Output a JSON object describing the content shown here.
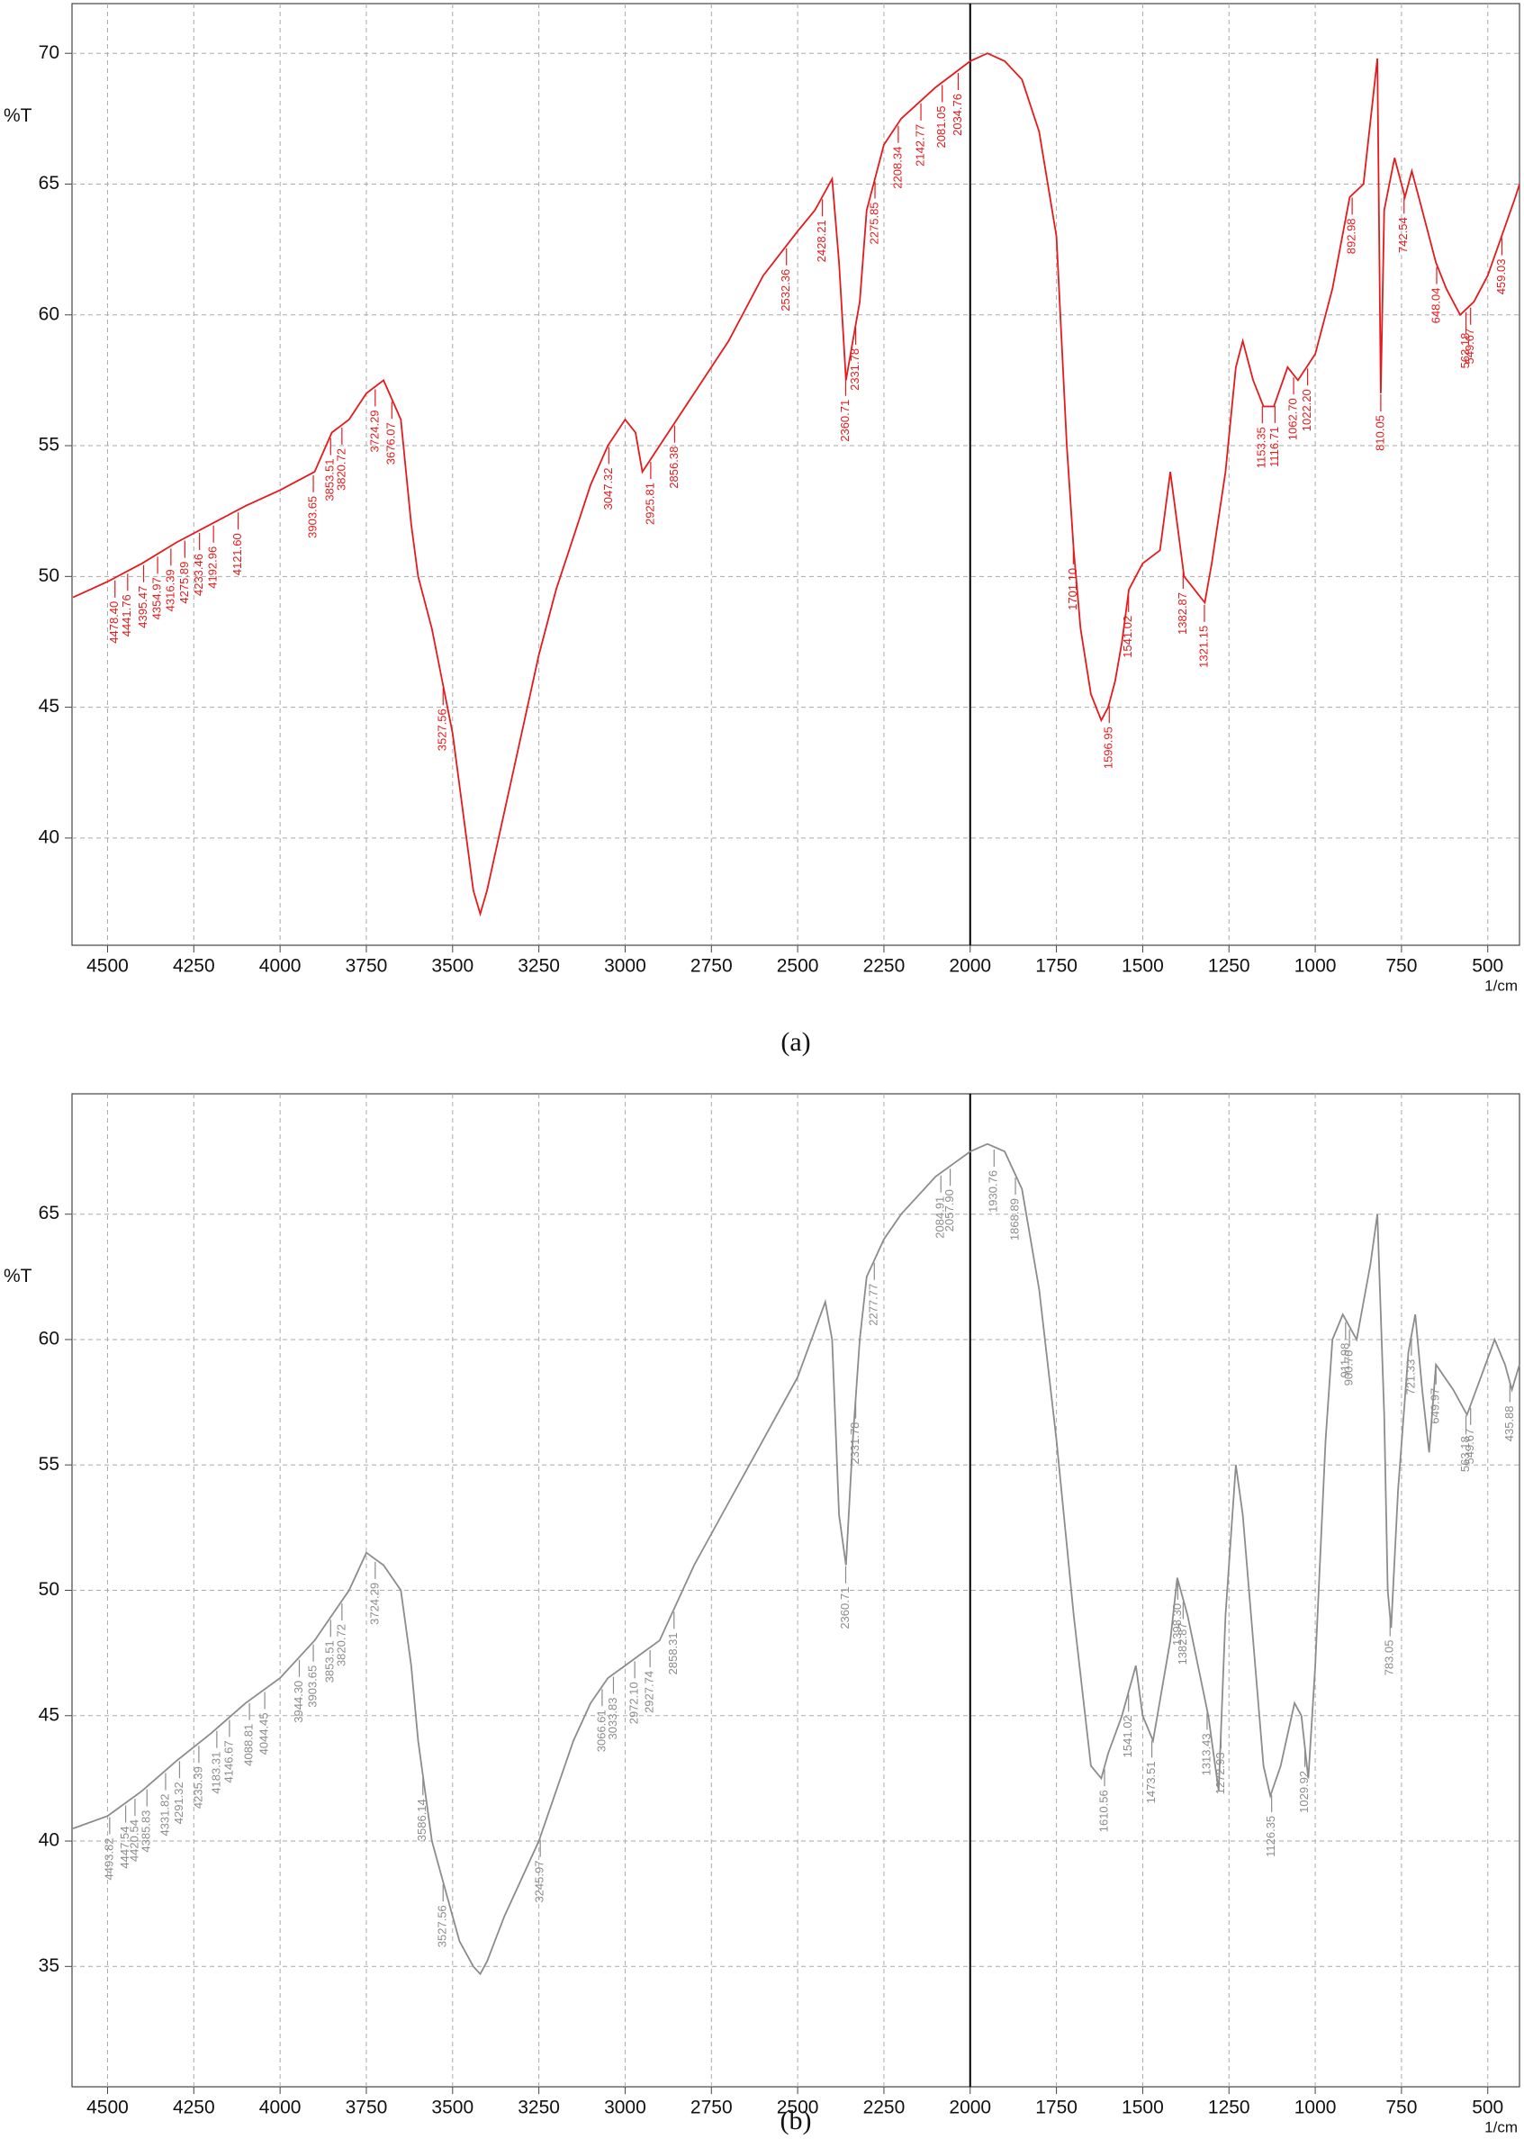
{
  "chart_data": [
    {
      "type": "line",
      "caption": "(a)",
      "ylabel": "%T",
      "xlabel": "1/cm",
      "color": "#e41a1c",
      "grid": true,
      "vline": 2000,
      "xlim": [
        4603,
        408
      ],
      "ylim": [
        35.9,
        71.9
      ],
      "xticks": [
        4500,
        4250,
        4000,
        3750,
        3500,
        3250,
        3000,
        2750,
        2500,
        2250,
        2000,
        1750,
        1500,
        1250,
        1000,
        750,
        500
      ],
      "yticks": [
        40,
        45,
        50,
        55,
        60,
        65,
        70
      ],
      "x": [
        4600,
        4500,
        4400,
        4300,
        4200,
        4100,
        4000,
        3900,
        3850,
        3800,
        3750,
        3700,
        3650,
        3620,
        3600,
        3560,
        3530,
        3500,
        3470,
        3440,
        3420,
        3400,
        3350,
        3300,
        3250,
        3200,
        3150,
        3100,
        3050,
        3000,
        2970,
        2950,
        2900,
        2850,
        2800,
        2700,
        2600,
        2500,
        2450,
        2400,
        2380,
        2360,
        2340,
        2320,
        2300,
        2250,
        2200,
        2100,
        2000,
        1950,
        1900,
        1850,
        1800,
        1750,
        1720,
        1700,
        1680,
        1650,
        1620,
        1600,
        1580,
        1560,
        1540,
        1500,
        1450,
        1420,
        1400,
        1380,
        1350,
        1320,
        1300,
        1260,
        1230,
        1210,
        1180,
        1150,
        1120,
        1080,
        1050,
        1000,
        950,
        900,
        860,
        820,
        810,
        800,
        770,
        740,
        720,
        700,
        650,
        620,
        580,
        540,
        500,
        460,
        420,
        408
      ],
      "series": [
        {
          "values": [
            49.2,
            49.8,
            50.5,
            51.3,
            52,
            52.7,
            53.3,
            54,
            55.5,
            56,
            57,
            57.5,
            56,
            52,
            50,
            48,
            46,
            44,
            41,
            38,
            37.1,
            38,
            41,
            44,
            47,
            49.5,
            51.5,
            53.5,
            55,
            56,
            55.5,
            54,
            55,
            56,
            57,
            59,
            61.5,
            63.2,
            64,
            65.2,
            62,
            57.5,
            59,
            60.5,
            64,
            66.5,
            67.5,
            68.7,
            69.7,
            70,
            69.7,
            69,
            67,
            63,
            55,
            51,
            48,
            45.5,
            44.5,
            45,
            46,
            47.5,
            49.5,
            50.5,
            51,
            54,
            52,
            50,
            49.5,
            49,
            50.5,
            54,
            58,
            59,
            57.5,
            56.5,
            56.5,
            58,
            57.5,
            58.5,
            61,
            64.5,
            65,
            69.8,
            57,
            64,
            66,
            64.5,
            65.5,
            64.5,
            62,
            61,
            60,
            60.5,
            61.5,
            63,
            64.5,
            65
          ]
        }
      ],
      "peaks": [
        {
          "value": 4478.4,
          "label": "4478.40"
        },
        {
          "value": 4441.76,
          "label": "4441.76"
        },
        {
          "value": 4395.47,
          "label": "4395.47"
        },
        {
          "value": 4354.97,
          "label": "4354.97"
        },
        {
          "value": 4316.39,
          "label": "4316.39"
        },
        {
          "value": 4275.89,
          "label": "4275.89"
        },
        {
          "value": 4233.46,
          "label": "4233.46"
        },
        {
          "value": 4192.96,
          "label": "4192.96"
        },
        {
          "value": 4121.6,
          "label": "4121.60"
        },
        {
          "value": 3903.65,
          "label": "3903.65"
        },
        {
          "value": 3853.51,
          "label": "3853.51"
        },
        {
          "value": 3820.72,
          "label": "3820.72"
        },
        {
          "value": 3724.29,
          "label": "3724.29"
        },
        {
          "value": 3676.07,
          "label": "3676.07"
        },
        {
          "value": 3527.56,
          "label": "3527.56"
        },
        {
          "value": 3047.32,
          "label": "3047.32"
        },
        {
          "value": 2925.81,
          "label": "2925.81"
        },
        {
          "value": 2856.38,
          "label": "2856.38"
        },
        {
          "value": 2532.36,
          "label": "2532.36"
        },
        {
          "value": 2428.21,
          "label": "2428.21"
        },
        {
          "value": 2360.71,
          "label": "2360.71"
        },
        {
          "value": 2331.78,
          "label": "2331.78"
        },
        {
          "value": 2275.85,
          "label": "2275.85"
        },
        {
          "value": 2208.34,
          "label": "2208.34"
        },
        {
          "value": 2142.77,
          "label": "2142.77"
        },
        {
          "value": 2081.05,
          "label": "2081.05"
        },
        {
          "value": 2034.76,
          "label": "2034.76"
        },
        {
          "value": 1701.1,
          "label": "1701.10"
        },
        {
          "value": 1596.95,
          "label": "1596.95"
        },
        {
          "value": 1541.02,
          "label": "1541.02"
        },
        {
          "value": 1382.87,
          "label": "1382.87"
        },
        {
          "value": 1321.15,
          "label": "1321.15"
        },
        {
          "value": 1153.35,
          "label": "1153.35"
        },
        {
          "value": 1116.71,
          "label": "1116.71"
        },
        {
          "value": 1062.7,
          "label": "1062.70"
        },
        {
          "value": 1022.2,
          "label": "1022.20"
        },
        {
          "value": 892.98,
          "label": "892.98"
        },
        {
          "value": 810.05,
          "label": "810.05"
        },
        {
          "value": 742.54,
          "label": "742.54"
        },
        {
          "value": 648.04,
          "label": "648.04"
        },
        {
          "value": 563.18,
          "label": "563.18"
        },
        {
          "value": 549.67,
          "label": "549.67"
        },
        {
          "value": 459.03,
          "label": "459.03"
        }
      ]
    },
    {
      "type": "line",
      "caption": "(b)",
      "ylabel": "%T",
      "xlabel": "1/cm",
      "color": "#8c8c8c",
      "grid": true,
      "vline": 2000,
      "xlim": [
        4603,
        408
      ],
      "ylim": [
        30.2,
        69.8
      ],
      "xticks": [
        4500,
        4250,
        4000,
        3750,
        3500,
        3250,
        3000,
        2750,
        2500,
        2250,
        2000,
        1750,
        1500,
        1250,
        1000,
        750,
        500
      ],
      "yticks": [
        35,
        40,
        45,
        50,
        55,
        60,
        65
      ],
      "x": [
        4600,
        4500,
        4400,
        4300,
        4200,
        4100,
        4000,
        3900,
        3800,
        3750,
        3700,
        3650,
        3620,
        3600,
        3560,
        3520,
        3480,
        3440,
        3420,
        3400,
        3350,
        3300,
        3250,
        3200,
        3150,
        3100,
        3050,
        3000,
        2950,
        2900,
        2850,
        2800,
        2700,
        2600,
        2500,
        2420,
        2400,
        2380,
        2360,
        2340,
        2320,
        2300,
        2250,
        2200,
        2100,
        2000,
        1950,
        1900,
        1850,
        1800,
        1750,
        1700,
        1650,
        1620,
        1600,
        1560,
        1520,
        1500,
        1470,
        1420,
        1400,
        1370,
        1340,
        1310,
        1280,
        1260,
        1230,
        1210,
        1180,
        1150,
        1130,
        1100,
        1060,
        1040,
        1020,
        1000,
        970,
        950,
        920,
        880,
        840,
        820,
        800,
        790,
        780,
        760,
        730,
        710,
        690,
        670,
        650,
        600,
        560,
        520,
        480,
        450,
        430,
        408
      ],
      "series": [
        {
          "values": [
            40.5,
            41,
            42,
            43.2,
            44.3,
            45.5,
            46.5,
            48,
            50,
            51.5,
            51,
            50,
            47,
            44,
            40,
            38,
            36,
            35,
            34.7,
            35.2,
            37,
            38.5,
            40,
            42,
            44,
            45.5,
            46.5,
            47,
            47.5,
            48,
            49.5,
            51,
            53.5,
            56,
            58.5,
            61.5,
            60,
            53,
            51,
            56,
            60,
            62.5,
            64,
            65,
            66.5,
            67.5,
            67.8,
            67.5,
            66,
            62,
            56,
            49,
            43,
            42.5,
            43.5,
            45,
            47,
            45,
            44,
            48,
            50.5,
            49,
            47,
            45,
            42,
            49,
            55,
            53,
            48,
            43,
            41.8,
            43,
            45.5,
            45,
            42.5,
            47,
            56,
            60,
            61,
            60,
            63,
            65,
            57,
            50,
            48.5,
            54,
            59.5,
            61,
            58,
            55.5,
            59,
            58,
            57,
            58.5,
            60,
            59,
            58,
            59
          ]
        }
      ],
      "peaks": [
        {
          "value": 4493.82,
          "label": "4493.82"
        },
        {
          "value": 4447.54,
          "label": "4447.54"
        },
        {
          "value": 4420.54,
          "label": "4420.54"
        },
        {
          "value": 4385.83,
          "label": "4385.83"
        },
        {
          "value": 4331.82,
          "label": "4331.82"
        },
        {
          "value": 4291.32,
          "label": "4291.32"
        },
        {
          "value": 4235.39,
          "label": "4235.39"
        },
        {
          "value": 4183.31,
          "label": "4183.31"
        },
        {
          "value": 4146.67,
          "label": "4146.67"
        },
        {
          "value": 4088.81,
          "label": "4088.81"
        },
        {
          "value": 4044.45,
          "label": "4044.45"
        },
        {
          "value": 3944.3,
          "label": "3944.30"
        },
        {
          "value": 3903.65,
          "label": "3903.65"
        },
        {
          "value": 3853.51,
          "label": "3853.51"
        },
        {
          "value": 3820.72,
          "label": "3820.72"
        },
        {
          "value": 3724.29,
          "label": "3724.29"
        },
        {
          "value": 3586.14,
          "label": "3586.14"
        },
        {
          "value": 3527.56,
          "label": "3527.56"
        },
        {
          "value": 3245.97,
          "label": "3245.97"
        },
        {
          "value": 3066.61,
          "label": "3066.61"
        },
        {
          "value": 3033.83,
          "label": "3033.83"
        },
        {
          "value": 2972.1,
          "label": "2972.10"
        },
        {
          "value": 2927.74,
          "label": "2927.74"
        },
        {
          "value": 2858.31,
          "label": "2858.31"
        },
        {
          "value": 2360.71,
          "label": "2360.71"
        },
        {
          "value": 2331.78,
          "label": "2331.78"
        },
        {
          "value": 2277.77,
          "label": "2277.77"
        },
        {
          "value": 2084.91,
          "label": "2084.91"
        },
        {
          "value": 2057.9,
          "label": "2057.90"
        },
        {
          "value": 1930.76,
          "label": "1930.76"
        },
        {
          "value": 1868.89,
          "label": "1868.89"
        },
        {
          "value": 1610.56,
          "label": "1610.56"
        },
        {
          "value": 1541.02,
          "label": "1541.02"
        },
        {
          "value": 1473.51,
          "label": "1473.51"
        },
        {
          "value": 1398.3,
          "label": "1398.30"
        },
        {
          "value": 1382.87,
          "label": "1382.87"
        },
        {
          "value": 1313.43,
          "label": "1313.43"
        },
        {
          "value": 1272.93,
          "label": "1272.93"
        },
        {
          "value": 1126.35,
          "label": "1126.35"
        },
        {
          "value": 1029.92,
          "label": "1029.92"
        },
        {
          "value": 911.98,
          "label": "911.98"
        },
        {
          "value": 900.7,
          "label": "900.70"
        },
        {
          "value": 783.05,
          "label": "783.05"
        },
        {
          "value": 721.33,
          "label": "721.33"
        },
        {
          "value": 649.97,
          "label": "649.97"
        },
        {
          "value": 563.18,
          "label": "563.18"
        },
        {
          "value": 549.67,
          "label": "549.67"
        },
        {
          "value": 435.88,
          "label": "435.88"
        }
      ]
    }
  ]
}
